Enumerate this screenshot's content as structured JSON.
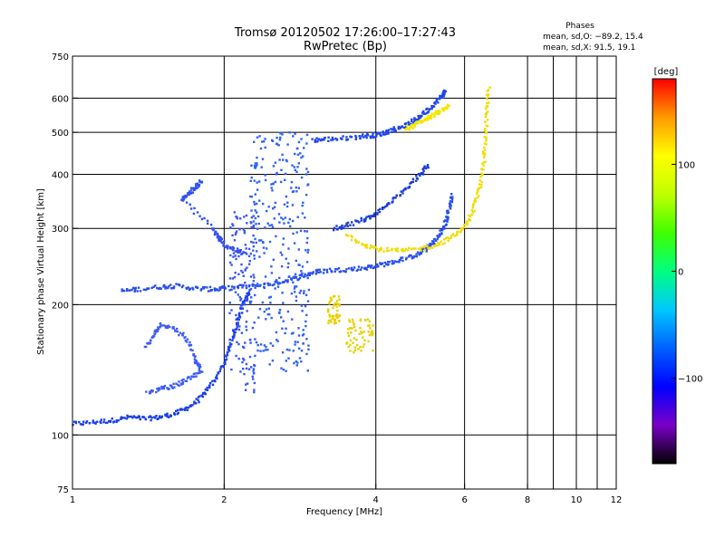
{
  "chart_data": {
    "type": "scatter",
    "title": "Tromsø 20120502 17:26:00–17:27:43",
    "subtitle": "RwPretec (Bp)",
    "xlabel": "Frequency [MHz]",
    "ylabel": "Stationary phase Virtual Height [km]",
    "x_scale": "log",
    "y_scale": "log",
    "xlim": [
      1,
      12
    ],
    "ylim": [
      75,
      750
    ],
    "x_ticks": [
      1,
      2,
      4,
      6,
      8,
      10,
      12
    ],
    "x_tick_labels": [
      "1",
      "2",
      "4",
      "6",
      "8",
      "10",
      "12"
    ],
    "x_grid": [
      2,
      4,
      6,
      8,
      9,
      10,
      11
    ],
    "y_ticks": [
      75,
      100,
      200,
      300,
      400,
      500,
      600,
      750
    ],
    "y_tick_labels": [
      "75",
      "100",
      "200",
      "300",
      "400",
      "500",
      "600",
      "750"
    ],
    "grid": true,
    "phase_stats": {
      "heading": "Phases",
      "line_o": "mean, sd,O: −89.2, 15.4",
      "line_x": "mean, sd,X:  91.5, 19.1"
    },
    "colorbar": {
      "label": "[deg]",
      "range": [
        -180,
        180
      ],
      "ticks": [
        100,
        0,
        -100
      ],
      "tick_labels": [
        "100",
        "0",
        "−100"
      ],
      "stops": [
        "#000000",
        "#7a00c8",
        "#0000ff",
        "#0060ff",
        "#00c8ff",
        "#00ff80",
        "#40ff00",
        "#c0ff00",
        "#ffff00",
        "#ff9900",
        "#ff0000"
      ]
    },
    "series": [
      {
        "phase": -95,
        "color": "#1a3fe8",
        "trace": [
          [
            1.0,
            106
          ],
          [
            1.1,
            107
          ],
          [
            1.2,
            108
          ],
          [
            1.3,
            110
          ],
          [
            1.4,
            109
          ],
          [
            1.5,
            110
          ],
          [
            1.6,
            112
          ],
          [
            1.7,
            116
          ],
          [
            1.8,
            122
          ],
          [
            1.9,
            132
          ],
          [
            2.0,
            146
          ],
          [
            2.05,
            160
          ],
          [
            2.1,
            175
          ],
          [
            2.15,
            190
          ],
          [
            2.2,
            205
          ],
          [
            2.25,
            215
          ]
        ]
      },
      {
        "phase": -95,
        "color": "#2a4ff0",
        "trace": [
          [
            1.25,
            215
          ],
          [
            1.35,
            217
          ],
          [
            1.5,
            220
          ],
          [
            1.6,
            221
          ],
          [
            1.75,
            218
          ],
          [
            1.9,
            217
          ],
          [
            2.0,
            218
          ],
          [
            2.2,
            220
          ],
          [
            2.4,
            222
          ],
          [
            2.6,
            226
          ],
          [
            2.8,
            231
          ],
          [
            3.0,
            237
          ],
          [
            3.2,
            240
          ],
          [
            3.5,
            241
          ],
          [
            3.8,
            243
          ],
          [
            4.0,
            246
          ],
          [
            4.3,
            250
          ],
          [
            4.6,
            256
          ],
          [
            4.9,
            263
          ],
          [
            5.1,
            272
          ],
          [
            5.3,
            285
          ],
          [
            5.45,
            300
          ],
          [
            5.55,
            318
          ],
          [
            5.62,
            340
          ],
          [
            5.66,
            360
          ]
        ]
      },
      {
        "phase": -95,
        "color": "#1e46ec",
        "trace": [
          [
            3.0,
            480
          ],
          [
            3.2,
            482
          ],
          [
            3.5,
            485
          ],
          [
            3.8,
            490
          ],
          [
            4.0,
            493
          ],
          [
            4.2,
            500
          ],
          [
            4.4,
            510
          ],
          [
            4.6,
            520
          ],
          [
            4.8,
            535
          ],
          [
            5.0,
            555
          ],
          [
            5.2,
            580
          ],
          [
            5.4,
            605
          ],
          [
            5.5,
            625
          ]
        ]
      },
      {
        "phase": -100,
        "color": "#3f5cf5",
        "trace": [
          [
            1.4,
            160
          ],
          [
            1.45,
            170
          ],
          [
            1.5,
            180
          ],
          [
            1.6,
            176
          ],
          [
            1.7,
            165
          ],
          [
            1.75,
            150
          ],
          [
            1.8,
            140
          ],
          [
            1.7,
            135
          ],
          [
            1.6,
            130
          ],
          [
            1.5,
            128
          ],
          [
            1.4,
            125
          ]
        ]
      },
      {
        "phase": -100,
        "color": "#3250f2",
        "trace": [
          [
            1.8,
            385
          ],
          [
            1.75,
            372
          ],
          [
            1.7,
            360
          ],
          [
            1.65,
            350
          ],
          [
            1.9,
            300
          ],
          [
            1.95,
            285
          ],
          [
            2.0,
            275
          ],
          [
            2.1,
            268
          ],
          [
            2.2,
            262
          ]
        ]
      },
      {
        "phase": -105,
        "color": "#2f62f5",
        "cluster": {
          "x_range": [
            2.25,
            2.95
          ],
          "y_range": [
            140,
            500
          ]
        }
      },
      {
        "phase": -100,
        "color": "#3a58f2",
        "cluster": {
          "x_range": [
            2.05,
            2.3
          ],
          "y_range": [
            125,
            330
          ]
        }
      },
      {
        "phase": 95,
        "color": "#f0dc00",
        "trace": [
          [
            3.5,
            290
          ],
          [
            3.8,
            275
          ],
          [
            4.1,
            268
          ],
          [
            4.5,
            266
          ],
          [
            5.0,
            270
          ],
          [
            5.4,
            278
          ],
          [
            5.8,
            292
          ],
          [
            6.1,
            310
          ],
          [
            6.3,
            340
          ],
          [
            6.45,
            380
          ],
          [
            6.55,
            430
          ],
          [
            6.6,
            490
          ],
          [
            6.65,
            560
          ],
          [
            6.7,
            640
          ]
        ]
      },
      {
        "phase": 95,
        "color": "#f5e600",
        "trace": [
          [
            4.6,
            510
          ],
          [
            4.8,
            520
          ],
          [
            5.0,
            535
          ],
          [
            5.2,
            548
          ],
          [
            5.4,
            560
          ],
          [
            5.6,
            575
          ]
        ]
      },
      {
        "phase": 90,
        "color": "#e8d000",
        "cluster": {
          "x_range": [
            3.2,
            3.4
          ],
          "y_range": [
            180,
            210
          ]
        }
      },
      {
        "phase": 90,
        "color": "#e8d000",
        "cluster": {
          "x_range": [
            3.5,
            3.95
          ],
          "y_range": [
            155,
            185
          ]
        }
      },
      {
        "phase": -90,
        "color": "#1c3ad8",
        "trace": [
          [
            3.3,
            300
          ],
          [
            3.5,
            305
          ],
          [
            3.8,
            315
          ],
          [
            4.0,
            325
          ],
          [
            4.3,
            345
          ],
          [
            4.6,
            370
          ],
          [
            4.9,
            400
          ],
          [
            5.1,
            420
          ]
        ]
      }
    ]
  }
}
